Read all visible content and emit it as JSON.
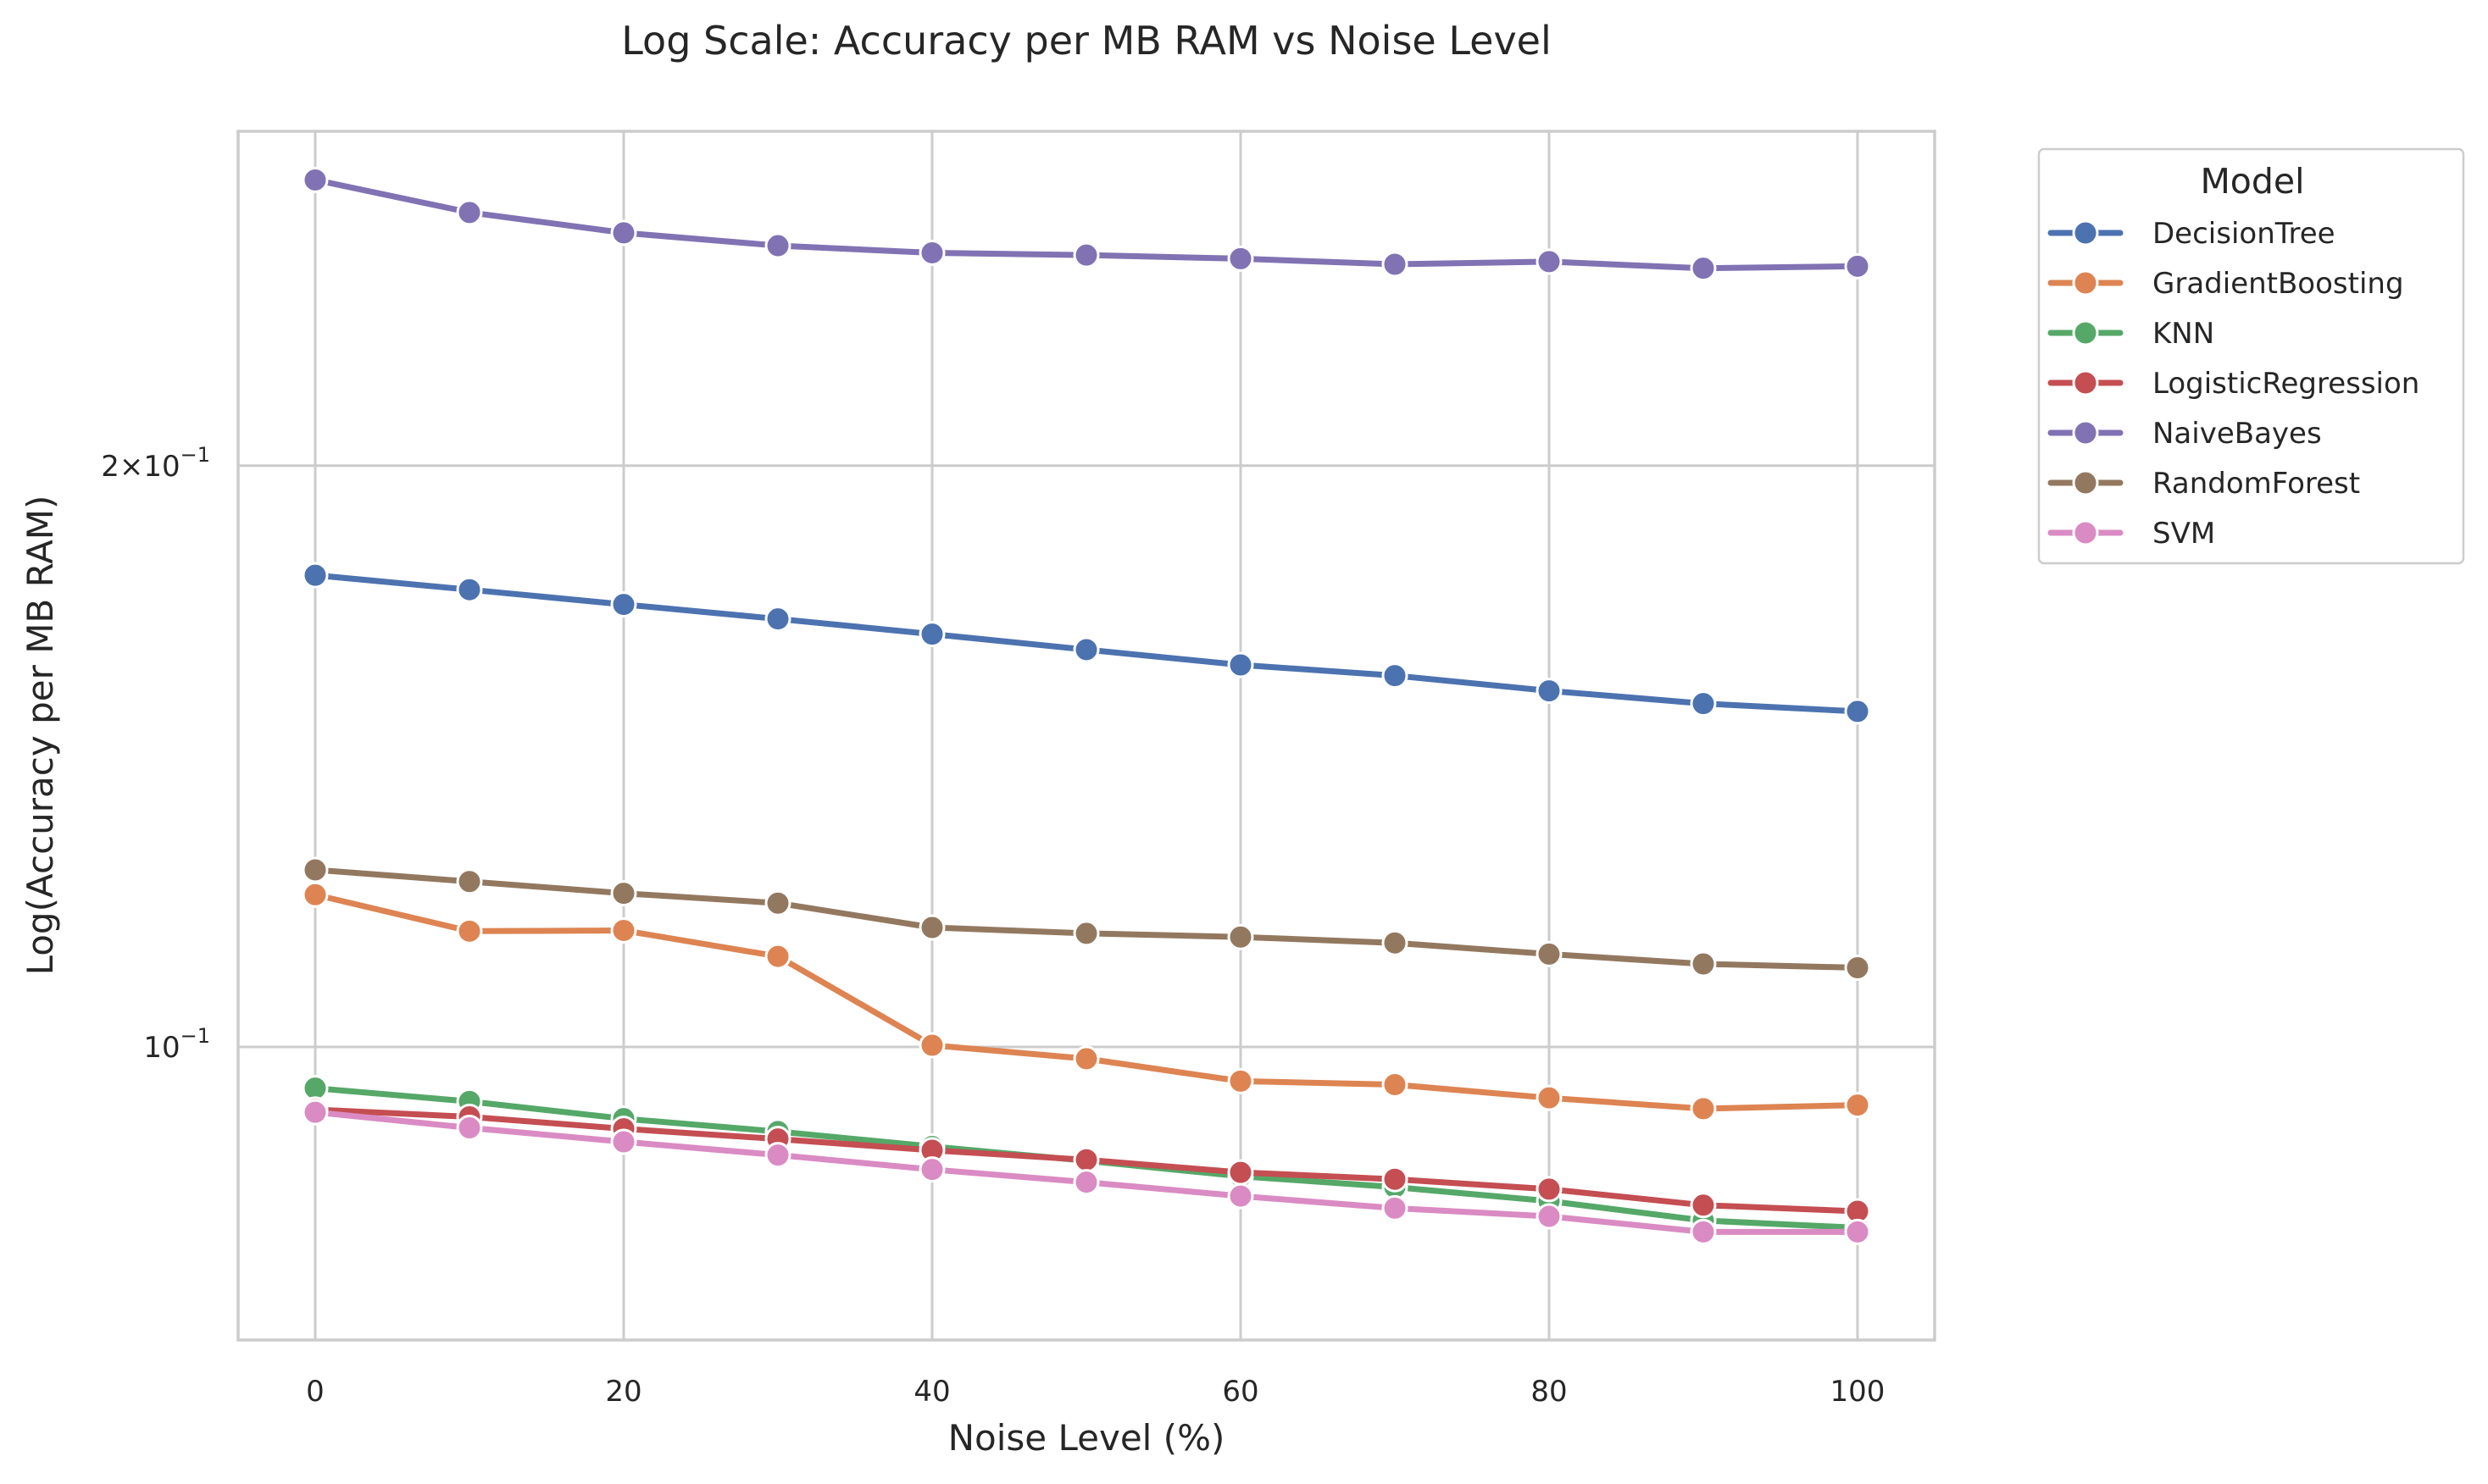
{
  "chart_data": {
    "type": "line",
    "title": "Log Scale: Accuracy per MB RAM vs Noise Level",
    "xlabel": "Noise Level (%)",
    "ylabel": "Log(Accuracy per MB RAM)",
    "yscale": "log",
    "x": [
      0,
      10,
      20,
      30,
      40,
      50,
      60,
      70,
      80,
      90,
      100
    ],
    "xlim": [
      -5,
      105
    ],
    "ylim": [
      0.0705,
      0.298
    ],
    "x_ticks": [
      0,
      20,
      40,
      60,
      80,
      100
    ],
    "y_ticks": [
      {
        "value": 0.1,
        "base": "10",
        "exponent": "−1",
        "mantissa": ""
      },
      {
        "value": 0.2,
        "base": "10",
        "exponent": "−1",
        "mantissa": "2×"
      }
    ],
    "grid": true,
    "legend": {
      "title": "Model",
      "placement": "outside upper right"
    },
    "series": [
      {
        "name": "DecisionTree",
        "color": "#4c72b0",
        "values": [
          0.1755,
          0.1725,
          0.1695,
          0.1666,
          0.1636,
          0.1606,
          0.1577,
          0.1557,
          0.1529,
          0.1506,
          0.1492
        ]
      },
      {
        "name": "GradientBoosting",
        "color": "#dd8452",
        "values": [
          0.1199,
          0.1148,
          0.1149,
          0.1114,
          0.1002,
          0.0986,
          0.096,
          0.0956,
          0.0941,
          0.0929,
          0.0933
        ]
      },
      {
        "name": "KNN",
        "color": "#55a868",
        "values": [
          0.0952,
          0.0937,
          0.0918,
          0.0904,
          0.0888,
          0.0873,
          0.0857,
          0.0846,
          0.0832,
          0.0813,
          0.0806
        ]
      },
      {
        "name": "LogisticRegression",
        "color": "#c44e52",
        "values": [
          0.0928,
          0.092,
          0.0907,
          0.0896,
          0.0884,
          0.0874,
          0.0861,
          0.0854,
          0.0844,
          0.0828,
          0.0822
        ]
      },
      {
        "name": "NaiveBayes",
        "color": "#8172b3",
        "values": [
          0.2812,
          0.2705,
          0.264,
          0.26,
          0.2578,
          0.2571,
          0.256,
          0.2543,
          0.2551,
          0.2531,
          0.2537
        ]
      },
      {
        "name": "RandomForest",
        "color": "#937860",
        "values": [
          0.1235,
          0.1218,
          0.1201,
          0.1187,
          0.1153,
          0.1145,
          0.114,
          0.1132,
          0.1117,
          0.1104,
          0.1099
        ]
      },
      {
        "name": "SVM",
        "color": "#da8bc3",
        "values": [
          0.0925,
          0.0908,
          0.0893,
          0.0879,
          0.0864,
          0.0851,
          0.0837,
          0.0825,
          0.0817,
          0.0802,
          0.0802
        ]
      }
    ]
  }
}
